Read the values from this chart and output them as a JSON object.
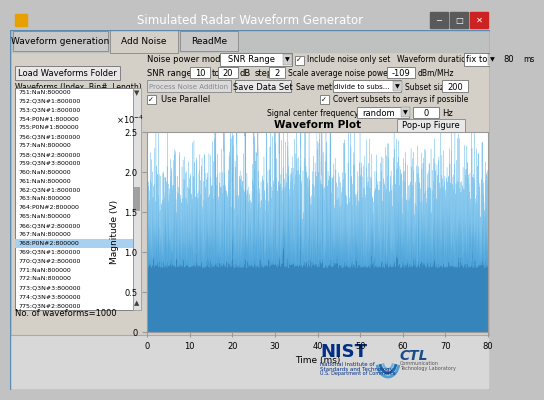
{
  "title": "Simulated Radar Waveform Generator",
  "bg_color": "#d4d0c8",
  "tab_active": "Add Noise",
  "tabs": [
    "Waveform generation",
    "Add Noise",
    "ReadMe"
  ],
  "list_items": [
    "751:NaN:800000",
    "752:Q3N#1:800000",
    "753:Q3N#1:800000",
    "754:P0N#1:800000",
    "755:P0N#1:800000",
    "756:Q3N#1:800000",
    "757:NaN:800000",
    "758:Q3N#2:800000",
    "759:Q3N#3:800000",
    "760:NaN:800000",
    "761:NaN:800000",
    "762:Q3N#1:800000",
    "763:NaN:800000",
    "764:P0N#2:800000",
    "765:NaN:800000",
    "766:Q3N#2:800000",
    "767:NaN:800000",
    "768:P0N#2:800000",
    "769:Q3N#1:800000",
    "770:Q3N#2:800000",
    "771:NaN:800000",
    "772:NaN:800000",
    "773:Q3N#3:800000",
    "774:Q3N#3:800000",
    "775:Q3N#2:800000"
  ],
  "selected_item_idx": 17,
  "waveform_plot_title": "Waveform Plot",
  "xlabel": "Time (ms)",
  "ylabel": "Magnitude (V)",
  "ylim": [
    0,
    0.00025
  ],
  "xlim": [
    0,
    80
  ],
  "plot_color": "#1f77b4",
  "no_waveforms_label": "No. of waveforms=1000",
  "title_bar_color": "#4a7fc1",
  "win_bg": "#d9d9d9"
}
